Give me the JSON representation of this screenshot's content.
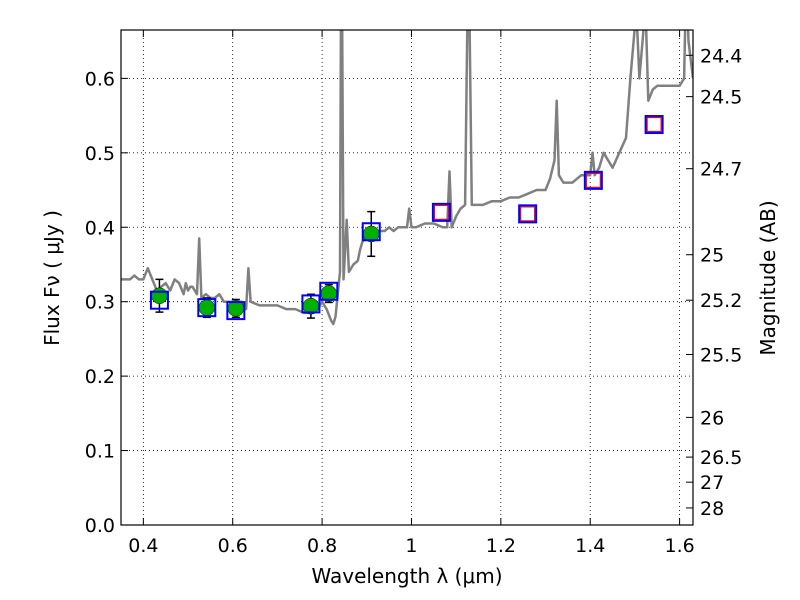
{
  "chart_data": {
    "type": "line",
    "xlabel": "Wavelength  λ (μm)",
    "ylabel": "Flux  Fν  ( μJy )",
    "y2label": "Magnitude (AB)",
    "xlim": [
      0.35,
      1.63
    ],
    "ylim": [
      0.0,
      0.665
    ],
    "x_ticks": [
      0.4,
      0.6,
      0.8,
      1.0,
      1.2,
      1.4,
      1.6
    ],
    "x_tick_labels": [
      "0.4",
      "0.6",
      "0.8",
      "1",
      "1.2",
      "1.4",
      "1.6"
    ],
    "y_ticks": [
      0.0,
      0.1,
      0.2,
      0.3,
      0.4,
      0.5,
      0.6
    ],
    "y_tick_labels": [
      "0.0",
      "0.1",
      "0.2",
      "0.3",
      "0.4",
      "0.5",
      "0.6"
    ],
    "y2_ticks": [
      24.4,
      24.5,
      24.7,
      25,
      25.2,
      25.5,
      26,
      26.5,
      27,
      28
    ],
    "y2_tick_labels": [
      "24.4",
      "24.5",
      "24.7",
      "25",
      "25.2",
      "25.5",
      "26",
      "26.5",
      "27",
      "28"
    ],
    "grid": true,
    "colors": {
      "spectrum": "#808080",
      "observed_fill": "#00b000",
      "model_box": "#0000ff",
      "upper_limit_box": "#ff0000",
      "errorbar": "#000000"
    },
    "spectrum": {
      "x": [
        0.35,
        0.37,
        0.38,
        0.39,
        0.4,
        0.41,
        0.42,
        0.43,
        0.44,
        0.45,
        0.46,
        0.47,
        0.48,
        0.49,
        0.495,
        0.5,
        0.505,
        0.51,
        0.52,
        0.525,
        0.53,
        0.54,
        0.55,
        0.56,
        0.57,
        0.58,
        0.59,
        0.6,
        0.61,
        0.62,
        0.63,
        0.635,
        0.64,
        0.66,
        0.68,
        0.7,
        0.72,
        0.74,
        0.76,
        0.78,
        0.79,
        0.8,
        0.81,
        0.82,
        0.825,
        0.83,
        0.84,
        0.842,
        0.845,
        0.848,
        0.85,
        0.855,
        0.86,
        0.87,
        0.88,
        0.885,
        0.89,
        0.9,
        0.91,
        0.92,
        0.93,
        0.94,
        0.95,
        0.96,
        0.97,
        0.98,
        0.99,
        0.995,
        1.0,
        1.003,
        1.01,
        1.03,
        1.05,
        1.07,
        1.08,
        1.085,
        1.09,
        1.1,
        1.11,
        1.12,
        1.125,
        1.13,
        1.135,
        1.14,
        1.16,
        1.18,
        1.2,
        1.22,
        1.24,
        1.26,
        1.28,
        1.3,
        1.31,
        1.32,
        1.325,
        1.33,
        1.34,
        1.36,
        1.38,
        1.4,
        1.405,
        1.41,
        1.42,
        1.43,
        1.45,
        1.48,
        1.49,
        1.5,
        1.505,
        1.51,
        1.52,
        1.525,
        1.53,
        1.54,
        1.55,
        1.56,
        1.58,
        1.6,
        1.61,
        1.615,
        1.62,
        1.63
      ],
      "y": [
        0.33,
        0.33,
        0.335,
        0.33,
        0.33,
        0.345,
        0.33,
        0.315,
        0.32,
        0.325,
        0.315,
        0.33,
        0.325,
        0.31,
        0.325,
        0.315,
        0.32,
        0.32,
        0.31,
        0.385,
        0.305,
        0.31,
        0.305,
        0.305,
        0.31,
        0.3,
        0.3,
        0.3,
        0.3,
        0.3,
        0.29,
        0.345,
        0.3,
        0.295,
        0.295,
        0.295,
        0.29,
        0.29,
        0.285,
        0.285,
        0.29,
        0.3,
        0.29,
        0.275,
        0.27,
        0.28,
        0.34,
        0.67,
        0.67,
        0.33,
        0.35,
        0.41,
        0.34,
        0.35,
        0.355,
        0.37,
        0.38,
        0.39,
        0.39,
        0.395,
        0.395,
        0.395,
        0.4,
        0.395,
        0.4,
        0.4,
        0.4,
        0.425,
        0.4,
        0.4,
        0.4,
        0.405,
        0.405,
        0.4,
        0.4,
        0.475,
        0.4,
        0.415,
        0.425,
        0.43,
        0.67,
        0.67,
        0.43,
        0.43,
        0.43,
        0.435,
        0.435,
        0.44,
        0.44,
        0.445,
        0.45,
        0.45,
        0.465,
        0.49,
        0.57,
        0.47,
        0.46,
        0.46,
        0.47,
        0.47,
        0.5,
        0.47,
        0.48,
        0.5,
        0.48,
        0.52,
        0.6,
        0.67,
        0.67,
        0.6,
        0.67,
        0.67,
        0.57,
        0.585,
        0.59,
        0.59,
        0.59,
        0.59,
        0.6,
        0.74,
        0.65,
        0.6
      ]
    },
    "observed": [
      {
        "x": 0.436,
        "y": 0.308,
        "err": 0.022
      },
      {
        "x": 0.542,
        "y": 0.292,
        "err": 0.013
      },
      {
        "x": 0.607,
        "y": 0.291,
        "err": 0.012
      },
      {
        "x": 0.775,
        "y": 0.294,
        "err": 0.016
      },
      {
        "x": 0.815,
        "y": 0.311,
        "err": 0.012
      },
      {
        "x": 0.91,
        "y": 0.391,
        "err": 0.03
      }
    ],
    "model_photometry": [
      {
        "x": 0.436,
        "y": 0.302
      },
      {
        "x": 0.542,
        "y": 0.292
      },
      {
        "x": 0.607,
        "y": 0.288
      },
      {
        "x": 0.775,
        "y": 0.297
      },
      {
        "x": 0.815,
        "y": 0.314
      },
      {
        "x": 0.91,
        "y": 0.394
      },
      {
        "x": 1.067,
        "y": 0.42
      },
      {
        "x": 1.26,
        "y": 0.418
      },
      {
        "x": 1.407,
        "y": 0.463
      },
      {
        "x": 1.543,
        "y": 0.538
      }
    ],
    "upper_limits": [
      {
        "x": 1.067,
        "y": 0.42
      },
      {
        "x": 1.26,
        "y": 0.418
      },
      {
        "x": 1.407,
        "y": 0.463
      },
      {
        "x": 1.543,
        "y": 0.538
      }
    ]
  }
}
